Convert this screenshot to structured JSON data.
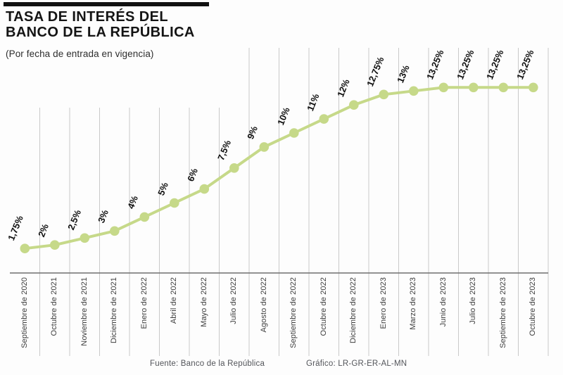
{
  "header": {
    "title_line1": "TASA DE INTERÉS DEL",
    "title_line2": "BANCO DE LA REPÚBLICA",
    "subtitle": "(Por fecha de entrada en vigencia)"
  },
  "footer": {
    "source": "Fuente: Banco de la República",
    "credit": "Gráfico: LR-GR-ER-AL-MN"
  },
  "chart_data": {
    "type": "line",
    "title": "Tasa de interés del Banco de la República",
    "subtitle": "(Por fecha de entrada en vigencia)",
    "categories": [
      "Septiembre de 2020",
      "Octubre de 2021",
      "Noviembre de 2021",
      "Diciembre de 2021",
      "Enero de 2022",
      "Abril de 2022",
      "Mayo de 2022",
      "Julio de 2022",
      "Agosto de 2022",
      "Septiembre de 2022",
      "Octubre de 2022",
      "Diciembre de 2022",
      "Enero de 2023",
      "Marzo de 2023",
      "Junio de 2023",
      "Julio de 2023",
      "Septiembre de 2023",
      "Octubre de 2023"
    ],
    "values": [
      1.75,
      2,
      2.5,
      3,
      4,
      5,
      6,
      7.5,
      9,
      10,
      11,
      12,
      12.75,
      13,
      13.25,
      13.25,
      13.25,
      13.25
    ],
    "value_labels": [
      "1,75%",
      "2%",
      "2,5%",
      "3%",
      "4%",
      "5%",
      "6%",
      "7,5%",
      "9%",
      "10%",
      "11%",
      "12%",
      "12,75%",
      "13%",
      "13,25%",
      "13,25%",
      "13,25%",
      "13,25%"
    ],
    "unit": "%",
    "ylim": [
      0,
      16
    ],
    "grid": "vertical-only",
    "legend": "none",
    "colors": {
      "line": "#c6d989",
      "marker": "#c6d989",
      "gridline": "#c9c9c9",
      "axis_line": "#6e6e6e",
      "value_label": "#101010",
      "category_label": "#3d3d3d",
      "accent_bar": "#111111"
    }
  }
}
